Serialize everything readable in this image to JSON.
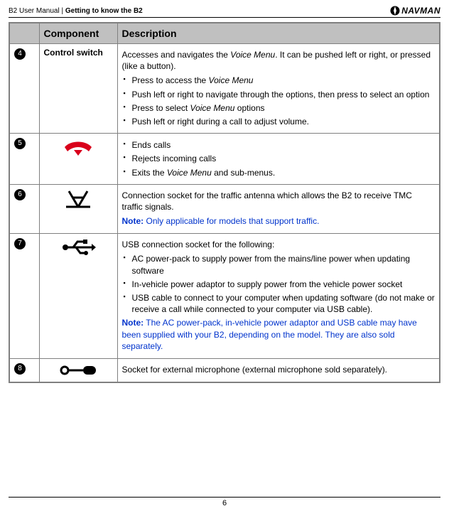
{
  "header": {
    "left_prefix": "B2 User Manual  |  ",
    "left_bold": "Getting to know the B2",
    "brand": "NAVMAN"
  },
  "table": {
    "head": {
      "num": "",
      "component": "Component",
      "description": "Description"
    },
    "rows": [
      {
        "num": "4",
        "component_text": "Control switch",
        "component_icon": null,
        "desc_intro": "Accesses and navigates the <i>Voice Menu</i>. It can be pushed left or right, or pressed (like a button).",
        "bullets": [
          "Press to access the <i>Voice Menu</i>",
          "Push left or right to navigate through the options, then press to select an option",
          "Press to select <i>Voice Menu</i> options",
          "Push left or right during a call to adjust volume."
        ],
        "note": null
      },
      {
        "num": "5",
        "component_text": null,
        "component_icon": "hangup",
        "desc_intro": null,
        "bullets": [
          "Ends calls",
          "Rejects incoming calls",
          "Exits the <i>Voice Menu</i> and sub-menus."
        ],
        "note": null
      },
      {
        "num": "6",
        "component_text": null,
        "component_icon": "antenna",
        "desc_intro": "Connection socket for the traffic antenna which allows the B2 to receive TMC traffic signals.",
        "bullets": [],
        "note": {
          "lead": "Note:",
          "body": " Only applicable for models that support traffic."
        }
      },
      {
        "num": "7",
        "component_text": null,
        "component_icon": "usb",
        "desc_intro": "USB connection socket for the following:",
        "bullets": [
          "AC power-pack to supply power from the mains/line power when updating software",
          "In-vehicle power adaptor to supply power from the vehicle power socket",
          "USB cable to connect to your computer when updating software (do not make or receive a call while connected to your computer via USB cable)."
        ],
        "note": {
          "lead": "Note:",
          "body": " The AC power-pack, in-vehicle power adaptor and USB cable may have been supplied with your B2, depending on the model. They are also sold separately."
        }
      },
      {
        "num": "8",
        "component_text": null,
        "component_icon": "mic",
        "desc_intro": "Socket for external microphone (external microphone sold separately).",
        "bullets": [],
        "note": null
      }
    ]
  },
  "footer": {
    "page": "6"
  },
  "colors": {
    "note_blue": "#0033cc",
    "hangup_red": "#d9001b"
  }
}
